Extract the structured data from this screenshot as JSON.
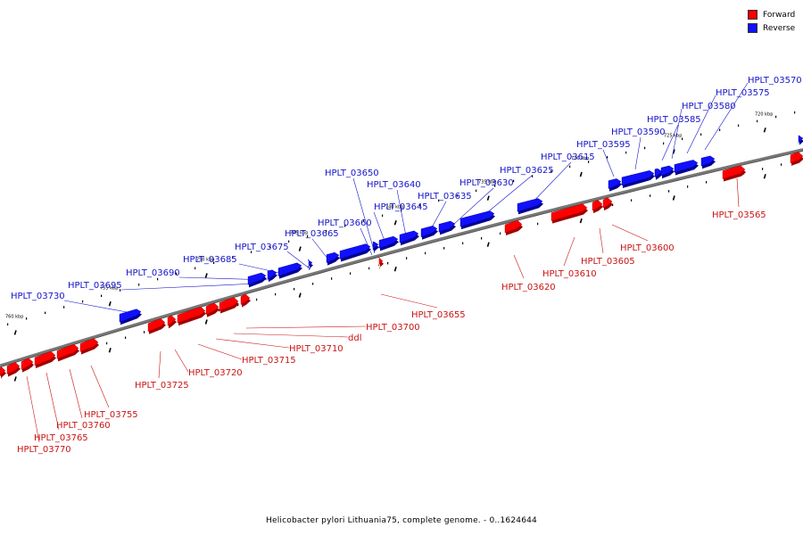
{
  "legend": [
    {
      "label": "Forward",
      "color": "#ff0000"
    },
    {
      "label": "Reverse",
      "color": "#1010ff"
    }
  ],
  "caption": "Helicobacter pylori Lithuania75, complete genome. - 0..1624644",
  "colors": {
    "forward": "#ff0000",
    "forward_dark": "#a00000",
    "reverse": "#1010ff",
    "reverse_dark": "#000090",
    "backbone": "#777777"
  },
  "ticks": [
    "760 kbp",
    "755 kbp",
    "750 kbp",
    "745 kbp",
    "740 kbp",
    "735 kbp",
    "730 kbp",
    "725 kbp",
    "720 kbp"
  ],
  "labels": [
    {
      "text": "HPLT_03570",
      "strand": "reverse"
    },
    {
      "text": "HPLT_03575",
      "strand": "reverse"
    },
    {
      "text": "HPLT_03580",
      "strand": "reverse"
    },
    {
      "text": "HPLT_03585",
      "strand": "reverse"
    },
    {
      "text": "HPLT_03590",
      "strand": "reverse"
    },
    {
      "text": "HPLT_03595",
      "strand": "reverse"
    },
    {
      "text": "HPLT_03615",
      "strand": "reverse"
    },
    {
      "text": "HPLT_03625",
      "strand": "reverse"
    },
    {
      "text": "HPLT_03630",
      "strand": "reverse"
    },
    {
      "text": "HPLT_03635",
      "strand": "reverse"
    },
    {
      "text": "HPLT_03640",
      "strand": "reverse"
    },
    {
      "text": "HPLT_03645",
      "strand": "reverse"
    },
    {
      "text": "HPLT_03650",
      "strand": "reverse"
    },
    {
      "text": "HPLT_03660",
      "strand": "reverse"
    },
    {
      "text": "HPLT_03665",
      "strand": "reverse"
    },
    {
      "text": "HPLT_03675",
      "strand": "reverse"
    },
    {
      "text": "HPLT_03685",
      "strand": "reverse"
    },
    {
      "text": "HPLT_03690",
      "strand": "reverse"
    },
    {
      "text": "HPLT_03695",
      "strand": "reverse"
    },
    {
      "text": "HPLT_03730",
      "strand": "reverse"
    },
    {
      "text": "HPLT_03565",
      "strand": "forward"
    },
    {
      "text": "HPLT_03600",
      "strand": "forward"
    },
    {
      "text": "HPLT_03605",
      "strand": "forward"
    },
    {
      "text": "HPLT_03610",
      "strand": "forward"
    },
    {
      "text": "HPLT_03620",
      "strand": "forward"
    },
    {
      "text": "HPLT_03655",
      "strand": "forward"
    },
    {
      "text": "HPLT_03700",
      "strand": "forward"
    },
    {
      "text": "ddl",
      "strand": "forward"
    },
    {
      "text": "HPLT_03710",
      "strand": "forward"
    },
    {
      "text": "HPLT_03715",
      "strand": "forward"
    },
    {
      "text": "HPLT_03720",
      "strand": "forward"
    },
    {
      "text": "HPLT_03725",
      "strand": "forward"
    },
    {
      "text": "HPLT_03755",
      "strand": "forward"
    },
    {
      "text": "HPLT_03760",
      "strand": "forward"
    },
    {
      "text": "HPLT_03765",
      "strand": "forward"
    },
    {
      "text": "HPLT_03770",
      "strand": "forward"
    }
  ]
}
